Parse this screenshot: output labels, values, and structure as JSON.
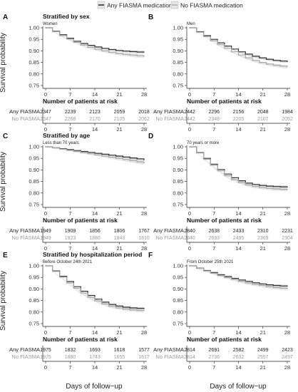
{
  "legend": {
    "items": [
      {
        "label": "Any FIASMA medication",
        "color": "#333333"
      },
      {
        "label": "No FIASMA medication",
        "color": "#b3b3b3"
      }
    ]
  },
  "y_axis_title": "Survival probability",
  "x_axis_title": "Days of follow−up",
  "risk_table_title": "Number of patients at risk",
  "risk_row_labels": [
    "Any FIASMA",
    "No FIASMA"
  ],
  "chart_data": [
    {
      "type": "line",
      "panel": "A",
      "title": "Stratified by sex",
      "subtitle": "Women",
      "xlabel": "Days of follow−up",
      "ylabel": "Survival probability",
      "xlim": [
        0,
        28
      ],
      "ylim": [
        0.75,
        1.0
      ],
      "x_ticks": [
        0,
        7,
        14,
        21,
        28
      ],
      "y_ticks": [
        "0.75",
        "0.80",
        "0.85",
        "0.90",
        "0.95",
        "1.00"
      ],
      "series": [
        {
          "name": "Any FIASMA medication",
          "x": [
            0,
            2,
            4,
            6,
            8,
            10,
            12,
            14,
            16,
            18,
            20,
            22,
            24,
            26,
            28
          ],
          "y": [
            1.0,
            0.985,
            0.97,
            0.955,
            0.942,
            0.932,
            0.924,
            0.917,
            0.911,
            0.906,
            0.902,
            0.899,
            0.897,
            0.895,
            0.895
          ]
        },
        {
          "name": "No FIASMA medication",
          "x": [
            0,
            2,
            4,
            6,
            8,
            10,
            12,
            14,
            16,
            18,
            20,
            22,
            24,
            26,
            28
          ],
          "y": [
            1.0,
            0.983,
            0.966,
            0.951,
            0.937,
            0.925,
            0.915,
            0.907,
            0.9,
            0.894,
            0.889,
            0.885,
            0.882,
            0.879,
            0.877
          ]
        }
      ],
      "risk_x": [
        0,
        7,
        14,
        21,
        28
      ],
      "risk_any": [
        "2347",
        "2239",
        "2123",
        "2059",
        "2018"
      ],
      "risk_no": [
        "2347",
        "2268",
        "2170",
        "2105",
        "2062"
      ]
    },
    {
      "type": "line",
      "panel": "B",
      "title": "",
      "subtitle": "Men",
      "xlabel": "Days of follow−up",
      "ylabel": "Survival probability",
      "xlim": [
        0,
        28
      ],
      "ylim": [
        0.75,
        1.0
      ],
      "x_ticks": [
        0,
        7,
        14,
        21,
        28
      ],
      "y_ticks": [
        "0.75",
        "0.80",
        "0.85",
        "0.90",
        "0.95",
        "1.00"
      ],
      "series": [
        {
          "name": "Any FIASMA medication",
          "x": [
            0,
            2,
            4,
            6,
            8,
            10,
            12,
            14,
            16,
            18,
            20,
            22,
            24,
            26,
            28
          ],
          "y": [
            1.0,
            0.983,
            0.966,
            0.95,
            0.935,
            0.921,
            0.908,
            0.896,
            0.886,
            0.877,
            0.87,
            0.864,
            0.859,
            0.856,
            0.854
          ]
        },
        {
          "name": "No FIASMA medication",
          "x": [
            0,
            2,
            4,
            6,
            8,
            10,
            12,
            14,
            16,
            18,
            20,
            22,
            24,
            26,
            28
          ],
          "y": [
            1.0,
            0.981,
            0.962,
            0.944,
            0.927,
            0.911,
            0.896,
            0.882,
            0.87,
            0.859,
            0.85,
            0.843,
            0.838,
            0.834,
            0.831
          ]
        }
      ],
      "risk_x": [
        0,
        7,
        14,
        21,
        28
      ],
      "risk_any": [
        "2442",
        "2296",
        "2156",
        "2048",
        "1984"
      ],
      "risk_no": [
        "2442",
        "2348",
        "2205",
        "2107",
        "2052"
      ]
    },
    {
      "type": "line",
      "panel": "C",
      "title": "Stratified by age",
      "subtitle": "Less than 70 years",
      "xlabel": "Days of follow−up",
      "ylabel": "Survival probability",
      "xlim": [
        0,
        28
      ],
      "ylim": [
        0.75,
        1.0
      ],
      "x_ticks": [
        0,
        7,
        14,
        21,
        28
      ],
      "y_ticks": [
        "0.75",
        "0.80",
        "0.85",
        "0.90",
        "0.95",
        "1.00"
      ],
      "series": [
        {
          "name": "Any FIASMA medication",
          "x": [
            0,
            2,
            4,
            6,
            8,
            10,
            12,
            14,
            16,
            18,
            20,
            22,
            24,
            26,
            28
          ],
          "y": [
            1.0,
            0.996,
            0.992,
            0.988,
            0.984,
            0.98,
            0.976,
            0.972,
            0.968,
            0.964,
            0.96,
            0.956,
            0.952,
            0.948,
            0.944
          ]
        },
        {
          "name": "No FIASMA medication",
          "x": [
            0,
            2,
            4,
            6,
            8,
            10,
            12,
            14,
            16,
            18,
            20,
            22,
            24,
            26,
            28
          ],
          "y": [
            1.0,
            0.995,
            0.99,
            0.985,
            0.98,
            0.975,
            0.97,
            0.965,
            0.96,
            0.955,
            0.95,
            0.945,
            0.94,
            0.935,
            0.93
          ]
        }
      ],
      "risk_x": [
        0,
        7,
        14,
        21,
        28
      ],
      "risk_any": [
        "1949",
        "1909",
        "1856",
        "1806",
        "1767"
      ],
      "risk_no": [
        "1949",
        "1923",
        "1880",
        "1843",
        "1810"
      ]
    },
    {
      "type": "line",
      "panel": "D",
      "title": "",
      "subtitle": "70 years or more",
      "xlabel": "Days of follow−up",
      "ylabel": "Survival probability",
      "xlim": [
        0,
        28
      ],
      "ylim": [
        0.75,
        1.0
      ],
      "x_ticks": [
        0,
        7,
        14,
        21,
        28
      ],
      "y_ticks": [
        "0.75",
        "0.80",
        "0.85",
        "0.90",
        "0.95",
        "1.00"
      ],
      "series": [
        {
          "name": "Any FIASMA medication",
          "x": [
            0,
            2,
            4,
            6,
            8,
            10,
            12,
            14,
            16,
            18,
            20,
            22,
            24,
            26,
            28
          ],
          "y": [
            1.0,
            0.975,
            0.95,
            0.925,
            0.902,
            0.882,
            0.866,
            0.853,
            0.843,
            0.837,
            0.833,
            0.83,
            0.828,
            0.827,
            0.826
          ]
        },
        {
          "name": "No FIASMA medication",
          "x": [
            0,
            2,
            4,
            6,
            8,
            10,
            12,
            14,
            16,
            18,
            20,
            22,
            24,
            26,
            28
          ],
          "y": [
            1.0,
            0.973,
            0.946,
            0.92,
            0.896,
            0.875,
            0.858,
            0.845,
            0.835,
            0.828,
            0.823,
            0.82,
            0.818,
            0.816,
            0.815
          ]
        }
      ],
      "risk_x": [
        0,
        7,
        14,
        21,
        28
      ],
      "risk_any": [
        "2840",
        "2638",
        "2433",
        "2310",
        "2231"
      ],
      "risk_no": [
        "2840",
        "2693",
        "2495",
        "2369",
        "2304"
      ]
    },
    {
      "type": "line",
      "panel": "E",
      "title": "Stratified by hospitalization period",
      "subtitle": "Before October 24th 2021",
      "xlabel": "Days of follow−up",
      "ylabel": "Survival probability",
      "xlim": [
        0,
        28
      ],
      "ylim": [
        0.75,
        1.0
      ],
      "x_ticks": [
        0,
        7,
        14,
        21,
        28
      ],
      "y_ticks": [
        "0.75",
        "0.80",
        "0.85",
        "0.90",
        "0.95",
        "1.00"
      ],
      "series": [
        {
          "name": "Any FIASMA medication",
          "x": [
            0,
            2,
            4,
            6,
            8,
            10,
            12,
            14,
            16,
            18,
            20,
            22,
            24,
            26,
            28
          ],
          "y": [
            1.0,
            0.978,
            0.955,
            0.932,
            0.91,
            0.89,
            0.872,
            0.856,
            0.843,
            0.833,
            0.826,
            0.821,
            0.818,
            0.816,
            0.815
          ]
        },
        {
          "name": "No FIASMA medication",
          "x": [
            0,
            2,
            4,
            6,
            8,
            10,
            12,
            14,
            16,
            18,
            20,
            22,
            24,
            26,
            28
          ],
          "y": [
            1.0,
            0.976,
            0.951,
            0.926,
            0.903,
            0.882,
            0.864,
            0.848,
            0.835,
            0.825,
            0.818,
            0.813,
            0.809,
            0.807,
            0.806
          ]
        }
      ],
      "risk_x": [
        0,
        7,
        14,
        21,
        28
      ],
      "risk_any": [
        "1975",
        "1832",
        "1693",
        "1618",
        "1577"
      ],
      "risk_no": [
        "1975",
        "1880",
        "1743",
        "1655",
        "1617"
      ]
    },
    {
      "type": "line",
      "panel": "F",
      "title": "",
      "subtitle": "From October 25th 2021",
      "xlabel": "Days of follow−up",
      "ylabel": "Survival probability",
      "xlim": [
        0,
        28
      ],
      "ylim": [
        0.75,
        1.0
      ],
      "x_ticks": [
        0,
        7,
        14,
        21,
        28
      ],
      "y_ticks": [
        "0.75",
        "0.80",
        "0.85",
        "0.90",
        "0.95",
        "1.00"
      ],
      "series": [
        {
          "name": "Any FIASMA medication",
          "x": [
            0,
            2,
            4,
            6,
            8,
            10,
            12,
            14,
            16,
            18,
            20,
            22,
            24,
            26,
            28
          ],
          "y": [
            1.0,
            0.99,
            0.98,
            0.971,
            0.962,
            0.954,
            0.946,
            0.939,
            0.933,
            0.927,
            0.922,
            0.918,
            0.915,
            0.913,
            0.912
          ]
        },
        {
          "name": "No FIASMA medication",
          "x": [
            0,
            2,
            4,
            6,
            8,
            10,
            12,
            14,
            16,
            18,
            20,
            22,
            24,
            26,
            28
          ],
          "y": [
            1.0,
            0.989,
            0.978,
            0.968,
            0.958,
            0.949,
            0.941,
            0.933,
            0.926,
            0.92,
            0.915,
            0.91,
            0.906,
            0.903,
            0.901
          ]
        }
      ],
      "risk_x": [
        0,
        7,
        14,
        21,
        28
      ],
      "risk_any": [
        "2814",
        "2691",
        "2582",
        "2499",
        "2423"
      ],
      "risk_no": [
        "2814",
        "2736",
        "2632",
        "2557",
        "2497"
      ]
    }
  ]
}
